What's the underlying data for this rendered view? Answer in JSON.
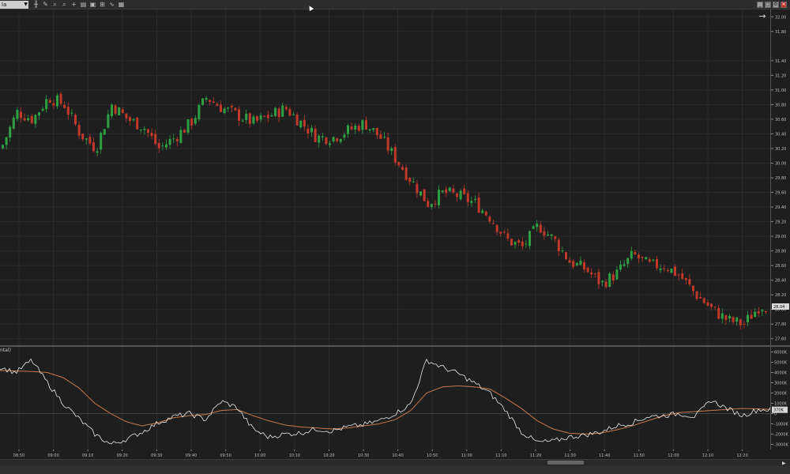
{
  "toolbar": {
    "instrument_value": "la",
    "icons": [
      "bar-type-icon",
      "draw-icon",
      "zoom-in-icon",
      "zoom-out-icon",
      "crosshair-icon",
      "properties-icon",
      "template-icon",
      "strategy-icon",
      "indicator-icon"
    ],
    "window_buttons": [
      "minimize-icon",
      "restore-icon",
      "properties-icon",
      "close-icon"
    ]
  },
  "price_axis": {
    "labels": [
      "32.00",
      "31.80",
      "31.40",
      "31.20",
      "31.00",
      "30.80",
      "30.60",
      "30.40",
      "30.20",
      "30.00",
      "29.80",
      "29.60",
      "29.40",
      "29.20",
      "29.00",
      "28.80",
      "28.60",
      "28.40",
      "28.20",
      "28.00",
      "27.80",
      "27.60"
    ],
    "current_price": "28.04"
  },
  "oscillator": {
    "label": "ntal)",
    "axis_labels": [
      "6000K",
      "5000K",
      "4000K",
      "3000K",
      "2000K",
      "1000K",
      "0",
      "-1000K",
      "-2000K",
      "-3000K"
    ],
    "current_value": "370K"
  },
  "time_axis": {
    "labels": [
      "08:50",
      "09:00",
      "09:10",
      "09:20",
      "09:30",
      "09:40",
      "09:50",
      "10:00",
      "10:10",
      "10:20",
      "10:30",
      "10:40",
      "10:50",
      "11:00",
      "11:10",
      "11:20",
      "11:30",
      "11:40",
      "11:50",
      "12:00",
      "12:10",
      "12:20"
    ]
  },
  "colors": {
    "up": "#2ea043",
    "down": "#c0392b",
    "osc_line": "#e8e8e8",
    "osc_signal": "#c8784a",
    "grid": "#2b2b2b"
  },
  "chart_data": {
    "type": "candlestick",
    "y_unit": "price",
    "ylim": [
      27.5,
      32.1
    ],
    "close_path": [
      [
        0,
        30.2
      ],
      [
        20,
        30.7
      ],
      [
        40,
        30.6
      ],
      [
        60,
        30.9
      ],
      [
        80,
        30.8
      ],
      [
        100,
        30.4
      ],
      [
        120,
        30.2
      ],
      [
        140,
        30.8
      ],
      [
        160,
        30.6
      ],
      [
        180,
        30.5
      ],
      [
        200,
        30.2
      ],
      [
        220,
        30.35
      ],
      [
        240,
        30.55
      ],
      [
        260,
        30.9
      ],
      [
        280,
        30.75
      ],
      [
        300,
        30.65
      ],
      [
        320,
        30.55
      ],
      [
        340,
        30.65
      ],
      [
        360,
        30.75
      ],
      [
        380,
        30.55
      ],
      [
        400,
        30.35
      ],
      [
        420,
        30.35
      ],
      [
        440,
        30.45
      ],
      [
        460,
        30.55
      ],
      [
        480,
        30.35
      ],
      [
        500,
        30.05
      ],
      [
        520,
        29.75
      ],
      [
        540,
        29.45
      ],
      [
        560,
        29.6
      ],
      [
        580,
        29.55
      ],
      [
        600,
        29.45
      ],
      [
        620,
        29.25
      ],
      [
        640,
        28.95
      ],
      [
        660,
        28.85
      ],
      [
        680,
        29.15
      ],
      [
        700,
        28.95
      ],
      [
        720,
        28.65
      ],
      [
        740,
        28.55
      ],
      [
        760,
        28.35
      ],
      [
        780,
        28.5
      ],
      [
        800,
        28.75
      ],
      [
        820,
        28.6
      ],
      [
        840,
        28.6
      ],
      [
        860,
        28.45
      ],
      [
        880,
        28.2
      ],
      [
        900,
        28.0
      ],
      [
        920,
        27.85
      ],
      [
        940,
        27.8
      ],
      [
        960,
        28.05
      ],
      [
        975,
        28.04
      ]
    ],
    "oscillator_ylim": [
      -3500,
      6500
    ],
    "oscillator_unit": "K",
    "oscillator_line": [
      [
        0,
        4500
      ],
      [
        20,
        4000
      ],
      [
        40,
        5200
      ],
      [
        60,
        3000
      ],
      [
        80,
        1000
      ],
      [
        100,
        -500
      ],
      [
        120,
        -2000
      ],
      [
        140,
        -3000
      ],
      [
        160,
        -2500
      ],
      [
        180,
        -1800
      ],
      [
        200,
        -900
      ],
      [
        220,
        -300
      ],
      [
        240,
        0
      ],
      [
        260,
        -600
      ],
      [
        280,
        1200
      ],
      [
        300,
        600
      ],
      [
        320,
        -1500
      ],
      [
        340,
        -2300
      ],
      [
        360,
        -2000
      ],
      [
        380,
        -1900
      ],
      [
        400,
        -1500
      ],
      [
        420,
        -1700
      ],
      [
        440,
        -1300
      ],
      [
        460,
        -1100
      ],
      [
        480,
        -700
      ],
      [
        500,
        0
      ],
      [
        520,
        900
      ],
      [
        540,
        5200
      ],
      [
        560,
        4500
      ],
      [
        580,
        3900
      ],
      [
        600,
        3000
      ],
      [
        620,
        2000
      ],
      [
        640,
        300
      ],
      [
        660,
        -1800
      ],
      [
        680,
        -2800
      ],
      [
        700,
        -2700
      ],
      [
        720,
        -2300
      ],
      [
        740,
        -2100
      ],
      [
        760,
        -1800
      ],
      [
        780,
        -1200
      ],
      [
        800,
        -900
      ],
      [
        820,
        -300
      ],
      [
        840,
        -200
      ],
      [
        860,
        0
      ],
      [
        880,
        -300
      ],
      [
        900,
        1300
      ],
      [
        920,
        500
      ],
      [
        940,
        -200
      ],
      [
        960,
        400
      ],
      [
        975,
        370
      ]
    ],
    "oscillator_signal": [
      [
        0,
        4200
      ],
      [
        40,
        4100
      ],
      [
        60,
        4000
      ],
      [
        80,
        3500
      ],
      [
        100,
        2500
      ],
      [
        120,
        1000
      ],
      [
        140,
        0
      ],
      [
        160,
        -800
      ],
      [
        180,
        -1200
      ],
      [
        200,
        -900
      ],
      [
        220,
        -400
      ],
      [
        240,
        -200
      ],
      [
        260,
        -100
      ],
      [
        280,
        300
      ],
      [
        300,
        400
      ],
      [
        320,
        -200
      ],
      [
        340,
        -700
      ],
      [
        360,
        -1100
      ],
      [
        380,
        -1300
      ],
      [
        400,
        -1400
      ],
      [
        420,
        -1500
      ],
      [
        440,
        -1400
      ],
      [
        460,
        -1200
      ],
      [
        480,
        -1000
      ],
      [
        500,
        -600
      ],
      [
        520,
        300
      ],
      [
        540,
        2000
      ],
      [
        560,
        2600
      ],
      [
        580,
        2700
      ],
      [
        600,
        2600
      ],
      [
        620,
        2400
      ],
      [
        640,
        1500
      ],
      [
        660,
        500
      ],
      [
        680,
        -700
      ],
      [
        700,
        -1500
      ],
      [
        720,
        -1900
      ],
      [
        740,
        -2000
      ],
      [
        760,
        -1900
      ],
      [
        780,
        -1600
      ],
      [
        800,
        -1200
      ],
      [
        820,
        -700
      ],
      [
        840,
        -200
      ],
      [
        860,
        100
      ],
      [
        880,
        200
      ],
      [
        900,
        300
      ],
      [
        920,
        400
      ],
      [
        940,
        500
      ],
      [
        960,
        450
      ],
      [
        975,
        400
      ]
    ]
  }
}
